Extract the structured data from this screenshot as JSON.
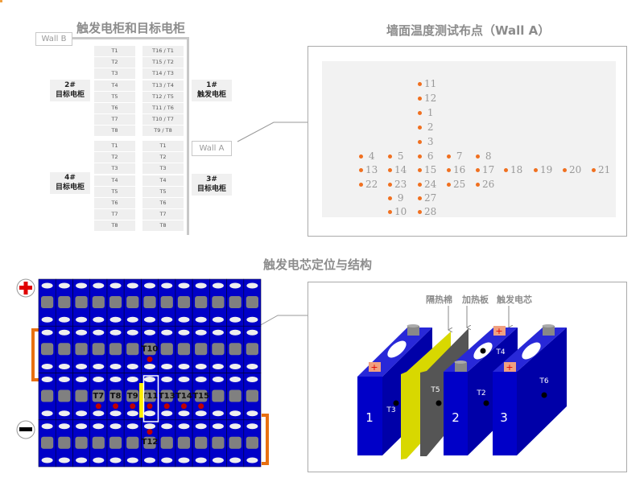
{
  "cabinet_diagram": {
    "title": "触发电柜和目标电柜",
    "wall_b": "Wall B",
    "wall_a": "Wall A",
    "upper_left_cells": [
      "T1",
      "T2",
      "T3",
      "T4",
      "T5",
      "T6",
      "T7",
      "T8"
    ],
    "upper_right_cells": [
      "T16 / T1",
      "T15 / T2",
      "T14 / T3",
      "T13 / T4",
      "T12 / T5",
      "T11 / T6",
      "T10 / T7",
      "T9 / T8"
    ],
    "lower_left_cells": [
      "T1",
      "T2",
      "T3",
      "T4",
      "T5",
      "T6",
      "T7",
      "T8"
    ],
    "lower_right_cells": [
      "T1",
      "T2",
      "T3",
      "T4",
      "T5",
      "T6",
      "T7",
      "T8"
    ],
    "cabinet_2": {
      "num": "2#",
      "name": "目标电柜"
    },
    "cabinet_1": {
      "num": "1#",
      "name": "触发电柜"
    },
    "cabinet_4": {
      "num": "4#",
      "name": "目标电柜"
    },
    "cabinet_3": {
      "num": "3#",
      "name": "目标电柜"
    }
  },
  "wall_a_panel": {
    "title": "墙面温度测试布点（Wall A）",
    "point_color": "#f07020",
    "grid": [
      [
        null,
        null,
        "11",
        null,
        null,
        null,
        null,
        null,
        null
      ],
      [
        null,
        null,
        "12",
        null,
        null,
        null,
        null,
        null,
        null
      ],
      [
        null,
        null,
        " 1",
        null,
        null,
        null,
        null,
        null,
        null
      ],
      [
        null,
        null,
        " 2",
        null,
        null,
        null,
        null,
        null,
        null
      ],
      [
        null,
        null,
        " 3",
        null,
        null,
        null,
        null,
        null,
        null
      ],
      [
        " 4",
        " 5",
        " 6",
        " 7",
        " 8",
        null,
        null,
        null,
        null
      ],
      [
        "13",
        "14",
        "15",
        "16",
        "17",
        "18",
        "19",
        "20",
        "21"
      ],
      [
        "22",
        "23",
        "24",
        "25",
        "26",
        null,
        null,
        null,
        null
      ],
      [
        null,
        " 9",
        "27",
        null,
        null,
        null,
        null,
        null,
        null
      ],
      [
        null,
        "10",
        "28",
        null,
        null,
        null,
        null,
        null,
        null
      ]
    ]
  },
  "cell_section": {
    "title": "触发电芯定位与结构",
    "pack_color": "#0000c8",
    "sensor_labels": {
      "T10": [
        1,
        6
      ],
      "T7": [
        2,
        3
      ],
      "T8": [
        2,
        4
      ],
      "T9": [
        2,
        5
      ],
      "T11": [
        2,
        6
      ],
      "T13": [
        2,
        7
      ],
      "T14": [
        2,
        8
      ],
      "T15": [
        2,
        9
      ],
      "T12": [
        3,
        6
      ]
    },
    "plus_icon": "plus-terminal-icon",
    "minus_icon": "minus-terminal-icon"
  },
  "structure_panel": {
    "label_insulation": "隔热棉",
    "label_heater": "加热板",
    "label_trigger": "触发电芯",
    "cell_1": "1",
    "cell_2": "2",
    "cell_3": "3",
    "t3": "T3",
    "t5": "T5",
    "t2": "T2",
    "t4": "T4",
    "t6": "T6"
  }
}
